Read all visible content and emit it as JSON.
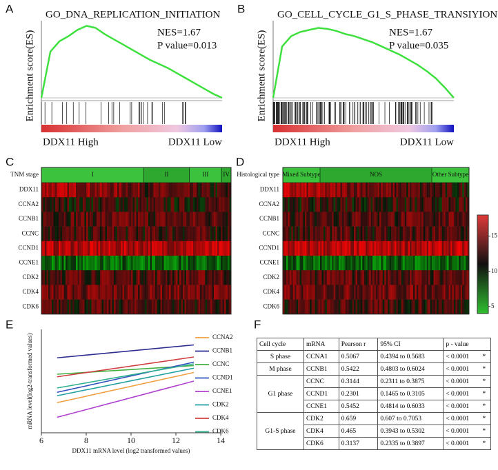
{
  "panels": {
    "a": {
      "letter": "A",
      "title": "GO_DNA_REPLICATION_INITIATION",
      "nes": "NES=1.67",
      "p": "P value=0.013",
      "y_label": "Enrichment score(ES)",
      "left": "DDX11 High",
      "right": "DDX11 Low",
      "ylim": [
        0,
        0.75
      ],
      "es": [
        0,
        0.45,
        0.55,
        0.6,
        0.66,
        0.7,
        0.68,
        0.62,
        0.57,
        0.52,
        0.47,
        0.42,
        0.37,
        0.33,
        0.29,
        0.24,
        0.19,
        0.14,
        0.09,
        0.04,
        0
      ]
    },
    "b": {
      "letter": "B",
      "title": "GO_CELL_CYCLE_G1_S_PHASE_TRANSIYION",
      "nes": "NES=1.67",
      "p": "P value=0.035",
      "y_label": "Enrichment score(ES)",
      "left": "DDX11 High",
      "right": "DDX11 Low",
      "ylim": [
        0,
        0.75
      ],
      "es": [
        0,
        0.5,
        0.6,
        0.64,
        0.66,
        0.68,
        0.67,
        0.65,
        0.62,
        0.6,
        0.57,
        0.54,
        0.5,
        0.46,
        0.42,
        0.37,
        0.32,
        0.26,
        0.19,
        0.1,
        0
      ]
    },
    "c": {
      "letter": "C",
      "header": "TNM stage",
      "groups": [
        "I",
        "II",
        "III",
        "IV"
      ]
    },
    "d": {
      "letter": "D",
      "header": "Histological type",
      "groups": [
        "Mixed Subtype",
        "NOS",
        "Other Subtype"
      ]
    },
    "heat_rows": [
      "DDX11",
      "CCNA2",
      "CCNB1",
      "CCNC",
      "CCND1",
      "CCNE1",
      "CDK2",
      "CDK4",
      "CDK6"
    ],
    "colorbar": {
      "lim": [
        4,
        18
      ],
      "ticks": [
        5,
        10,
        15
      ]
    },
    "e": {
      "letter": "E"
    },
    "f": {
      "letter": "F"
    }
  },
  "chart_data": {
    "type": "line",
    "x_label": "DDX11 mRNA level (log2 transformed values)",
    "y_label": "mRNA level(log2-transformed values)",
    "x": [
      6.7,
      12.8
    ],
    "xlim": [
      6,
      14
    ],
    "xticks": [
      6,
      8,
      10,
      12,
      14
    ],
    "ylim": [
      4,
      16
    ],
    "series": [
      {
        "name": "CCNA2",
        "color": "#f0a040",
        "values": [
          7.5,
          11.0
        ]
      },
      {
        "name": "CCNB1",
        "color": "#2a2a90",
        "values": [
          12.7,
          14.2
        ]
      },
      {
        "name": "CCNC",
        "color": "#40b040",
        "values": [
          10.8,
          11.8
        ]
      },
      {
        "name": "CCND1",
        "color": "#3050c0",
        "values": [
          8.7,
          12.2
        ]
      },
      {
        "name": "CCNE1",
        "color": "#b040d0",
        "values": [
          5.8,
          10.0
        ]
      },
      {
        "name": "CDK2",
        "color": "#20a0a0",
        "values": [
          8.3,
          11.5
        ]
      },
      {
        "name": "CDK4",
        "color": "#d04040",
        "values": [
          10.5,
          12.8
        ]
      },
      {
        "name": "CDK6",
        "color": "#30b090",
        "values": [
          9.2,
          12.0
        ]
      }
    ]
  },
  "table": {
    "header": [
      "Cell cycle",
      "mRNA",
      "Pearson r",
      "95% CI",
      "p - value"
    ],
    "groups": [
      {
        "phase": "S phase",
        "rows": [
          [
            "CCNA1",
            0.5067,
            "0.4394   to 0.5683",
            "< 0.0001",
            "*"
          ]
        ]
      },
      {
        "phase": "M phase",
        "rows": [
          [
            "CCNB1",
            0.5422,
            "0.4803 to 0.6024",
            "< 0.0001",
            "*"
          ]
        ]
      },
      {
        "phase": "G1 phase",
        "rows": [
          [
            "CCNC",
            0.3144,
            "0.2311 to 0.3875",
            "< 0.0001",
            "*"
          ],
          [
            "CCND1",
            0.2301,
            "0.1465 to 0.3105",
            "< 0.0001",
            "*"
          ],
          [
            "CCNE1",
            0.5452,
            "0.4814 to 0.6033",
            "< 0.0001",
            "*"
          ]
        ]
      },
      {
        "phase": "G1-S phase",
        "rows": [
          [
            "CDK2",
            0.659,
            "0.607 to 0.7053",
            "< 0.0001",
            "*"
          ],
          [
            "CDK4",
            0.465,
            "0.3943 to 0.5302",
            "< 0.0001",
            "*"
          ],
          [
            "CDK6",
            0.3137,
            "0.2335 to 0.3897",
            "< 0.0001",
            "*"
          ]
        ]
      }
    ]
  }
}
